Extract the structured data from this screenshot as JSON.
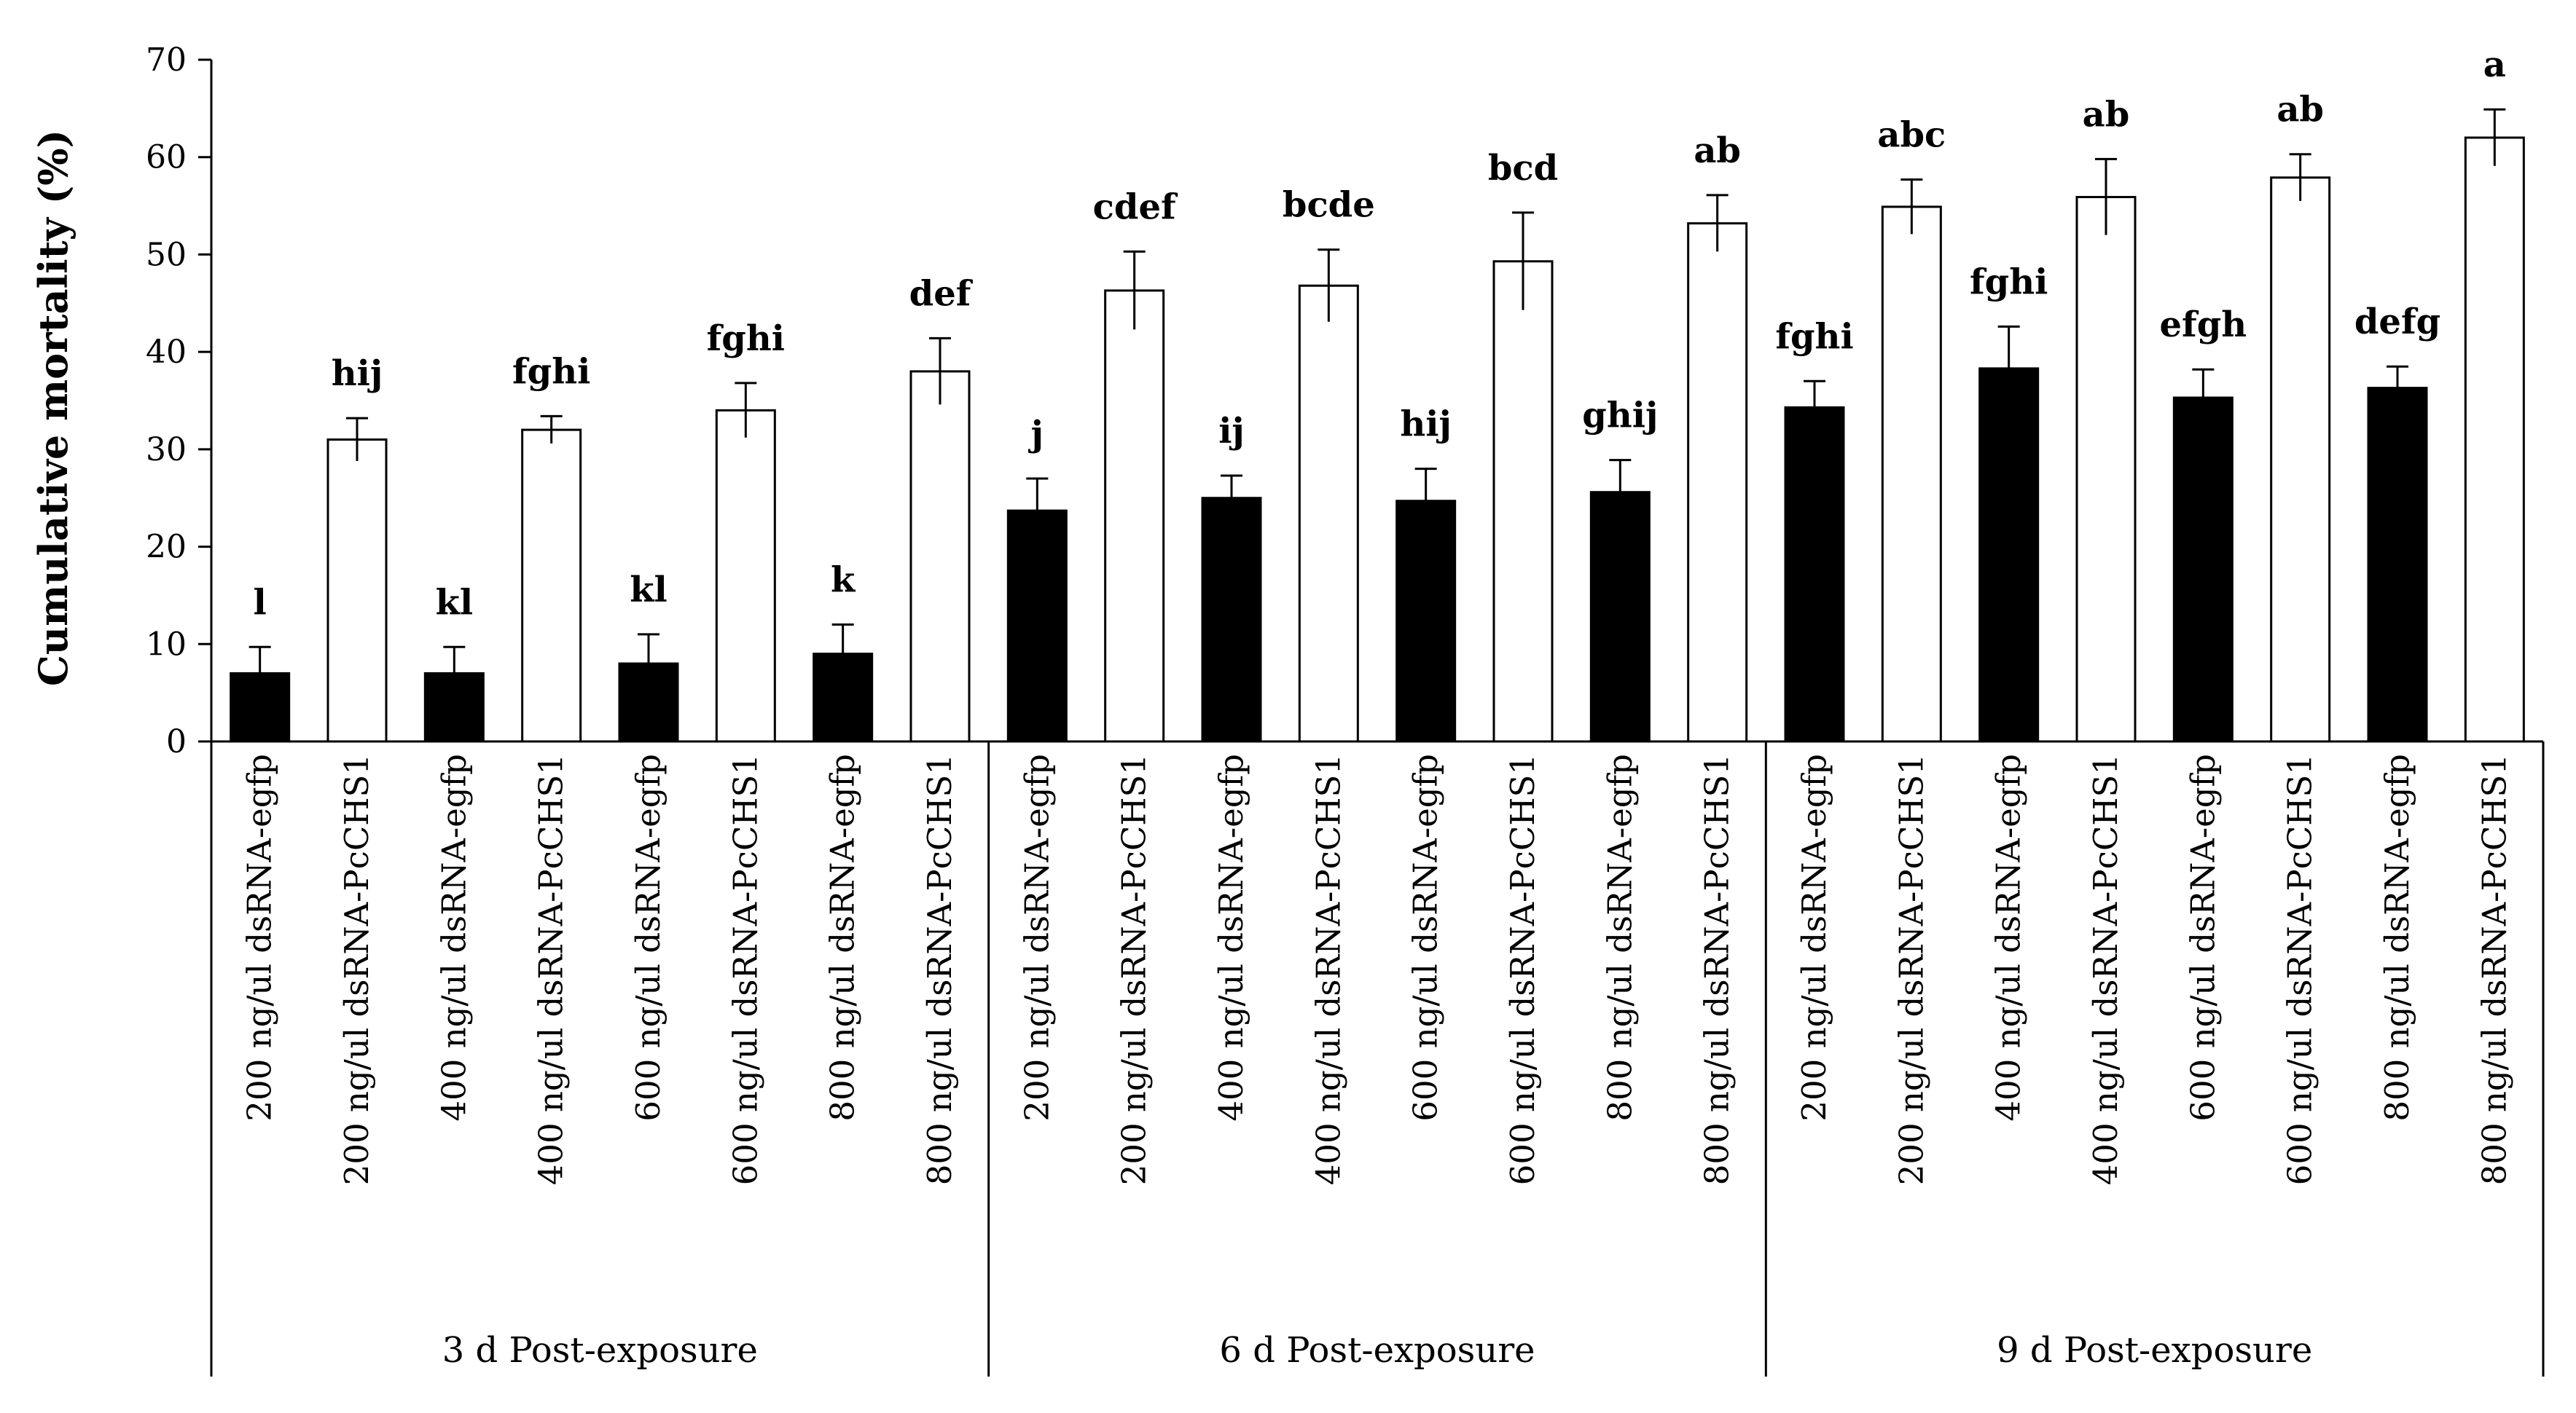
{
  "chart_data": {
    "type": "bar",
    "ylabel": "Cumulative mortality (%)",
    "ylim": [
      0,
      70
    ],
    "yticks": [
      0,
      10,
      20,
      30,
      40,
      50,
      60,
      70
    ],
    "grid": false,
    "groups": [
      {
        "label": "3 d   Post-exposure",
        "bars": [
          {
            "label": "200 ng/ul dsRNA-egfp",
            "treatment": "egfp",
            "value": 7,
            "error": 2.7,
            "significance": "l"
          },
          {
            "label": "200 ng/ul dsRNA-PcCHS1",
            "treatment": "PcCHS1",
            "value": 31,
            "error": 2.2,
            "significance": "hij"
          },
          {
            "label": "400 ng/ul dsRNA-egfp",
            "treatment": "egfp",
            "value": 7,
            "error": 2.7,
            "significance": "kl"
          },
          {
            "label": "400 ng/ul dsRNA-PcCHS1",
            "treatment": "PcCHS1",
            "value": 32,
            "error": 1.4,
            "significance": "fghi"
          },
          {
            "label": "600 ng/ul dsRNA-egfp",
            "treatment": "egfp",
            "value": 8,
            "error": 3.0,
            "significance": "kl"
          },
          {
            "label": "600 ng/ul dsRNA-PcCHS1",
            "treatment": "PcCHS1",
            "value": 34,
            "error": 2.8,
            "significance": "fghi"
          },
          {
            "label": "800 ng/ul dsRNA-egfp",
            "treatment": "egfp",
            "value": 9,
            "error": 3.0,
            "significance": "k"
          },
          {
            "label": "800 ng/ul dsRNA-PcCHS1",
            "treatment": "PcCHS1",
            "value": 38,
            "error": 3.4,
            "significance": "def"
          }
        ]
      },
      {
        "label": "6 d   Post-exposure",
        "bars": [
          {
            "label": "200 ng/ul dsRNA-egfp",
            "treatment": "egfp",
            "value": 23.7,
            "error": 3.3,
            "significance": "j"
          },
          {
            "label": "200 ng/ul dsRNA-PcCHS1",
            "treatment": "PcCHS1",
            "value": 46.3,
            "error": 4.0,
            "significance": "cdef"
          },
          {
            "label": "400 ng/ul dsRNA-egfp",
            "treatment": "egfp",
            "value": 25,
            "error": 2.3,
            "significance": "ij"
          },
          {
            "label": "400 ng/ul dsRNA-PcCHS1",
            "treatment": "PcCHS1",
            "value": 46.8,
            "error": 3.7,
            "significance": "bcde"
          },
          {
            "label": "600 ng/ul dsRNA-egfp",
            "treatment": "egfp",
            "value": 24.7,
            "error": 3.3,
            "significance": "hij"
          },
          {
            "label": "600 ng/ul dsRNA-PcCHS1",
            "treatment": "PcCHS1",
            "value": 49.3,
            "error": 5.0,
            "significance": "bcd"
          },
          {
            "label": "800 ng/ul dsRNA-egfp",
            "treatment": "egfp",
            "value": 25.6,
            "error": 3.3,
            "significance": "ghij"
          },
          {
            "label": "800 ng/ul dsRNA-PcCHS1",
            "treatment": "PcCHS1",
            "value": 53.2,
            "error": 2.9,
            "significance": "ab"
          }
        ]
      },
      {
        "label": "9 d   Post-exposure",
        "bars": [
          {
            "label": "200 ng/ul dsRNA-egfp",
            "treatment": "egfp",
            "value": 34.3,
            "error": 2.7,
            "significance": "fghi"
          },
          {
            "label": "200 ng/ul dsRNA-PcCHS1",
            "treatment": "PcCHS1",
            "value": 54.9,
            "error": 2.8,
            "significance": "abc"
          },
          {
            "label": "400 ng/ul dsRNA-egfp",
            "treatment": "egfp",
            "value": 38.3,
            "error": 4.3,
            "significance": "fghi"
          },
          {
            "label": "400 ng/ul dsRNA-PcCHS1",
            "treatment": "PcCHS1",
            "value": 55.9,
            "error": 3.9,
            "significance": "ab"
          },
          {
            "label": "600 ng/ul dsRNA-egfp",
            "treatment": "egfp",
            "value": 35.3,
            "error": 2.9,
            "significance": "efgh"
          },
          {
            "label": "600 ng/ul dsRNA-PcCHS1",
            "treatment": "PcCHS1",
            "value": 57.9,
            "error": 2.4,
            "significance": "ab"
          },
          {
            "label": "800 ng/ul dsRNA-egfp",
            "treatment": "egfp",
            "value": 36.3,
            "error": 2.2,
            "significance": "defg"
          },
          {
            "label": "800 ng/ul dsRNA-PcCHS1",
            "treatment": "PcCHS1",
            "value": 62,
            "error": 2.9,
            "significance": "a"
          }
        ]
      }
    ],
    "colors": {
      "egfp": "#000000",
      "PcCHS1": "#ffffff",
      "outline": "#000000"
    }
  }
}
